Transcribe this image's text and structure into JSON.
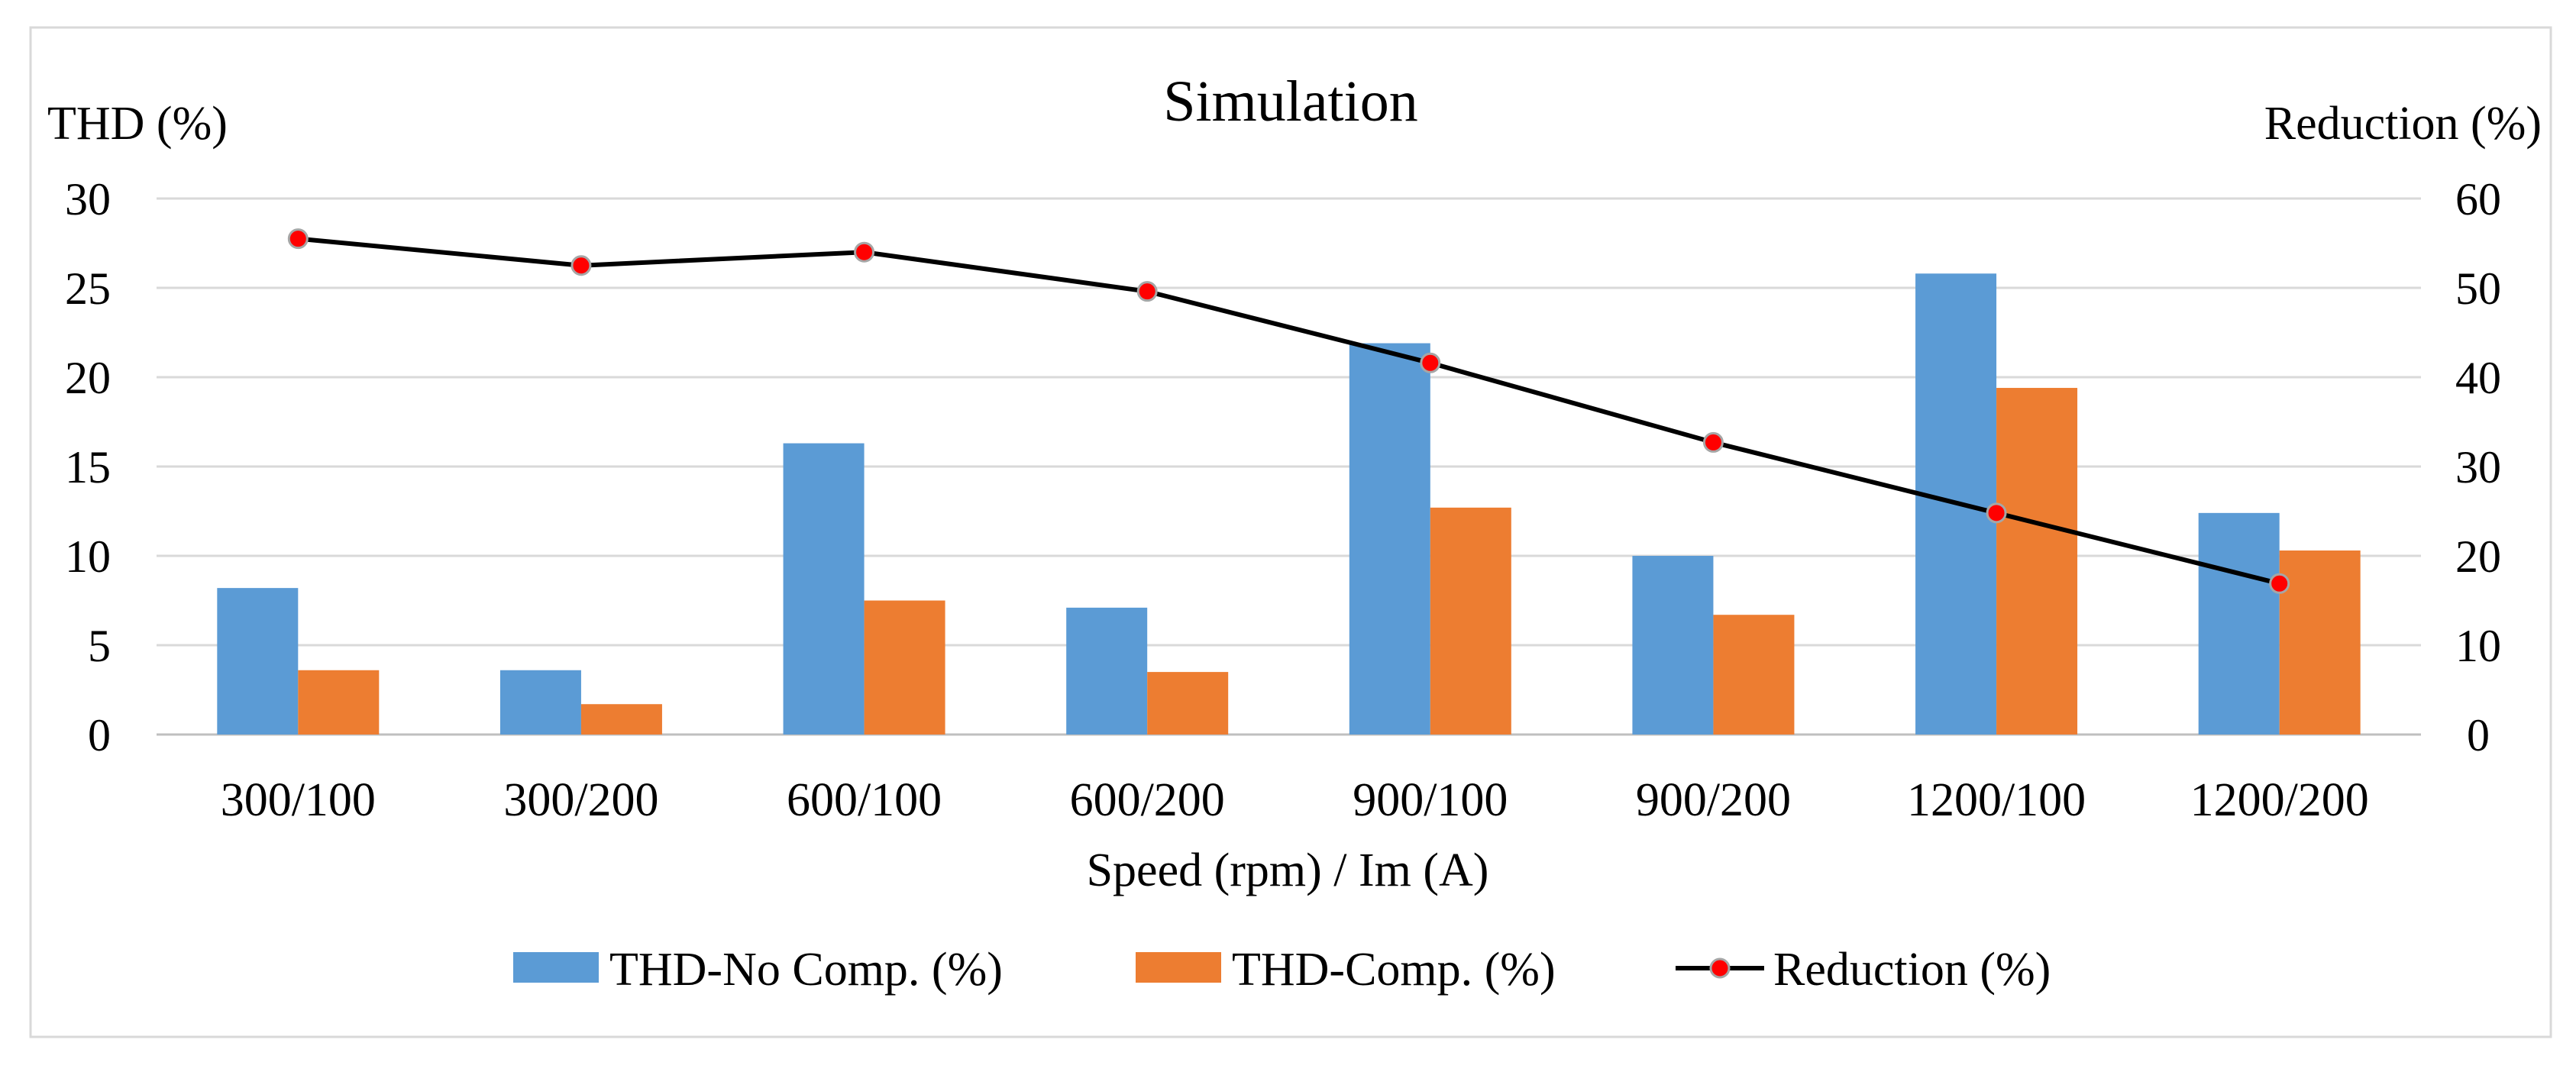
{
  "chart_data": {
    "type": "bar",
    "title": "Simulation",
    "xlabel": "Speed (rpm) / Im (A)",
    "ylabel_left": "THD (%)",
    "ylabel_right": "Reduction (%)",
    "ylim_left": [
      0,
      30
    ],
    "ylim_right": [
      0,
      60
    ],
    "yticks_left": [
      0,
      5,
      10,
      15,
      20,
      25,
      30
    ],
    "yticks_right": [
      0,
      10,
      20,
      30,
      40,
      50,
      60
    ],
    "grid": true,
    "legend_position": "bottom",
    "categories": [
      "300/100",
      "300/200",
      "600/100",
      "600/200",
      "900/100",
      "900/200",
      "1200/100",
      "1200/200"
    ],
    "series": [
      {
        "name": "THD-No Comp. (%)",
        "type": "bar",
        "axis": "left",
        "color": "#5B9BD5",
        "values": [
          8.2,
          3.6,
          16.3,
          7.1,
          21.9,
          10.0,
          25.8,
          12.4
        ]
      },
      {
        "name": "THD-Comp. (%)",
        "type": "bar",
        "axis": "left",
        "color": "#ED7D31",
        "values": [
          3.6,
          1.7,
          7.5,
          3.5,
          12.7,
          6.7,
          19.4,
          10.3
        ]
      },
      {
        "name": "Reduction (%)",
        "type": "line",
        "axis": "right",
        "color": "#000000",
        "marker_color": "#FF0000",
        "values": [
          55.5,
          52.5,
          54.0,
          49.6,
          41.6,
          32.7,
          24.8,
          16.9
        ]
      }
    ]
  }
}
